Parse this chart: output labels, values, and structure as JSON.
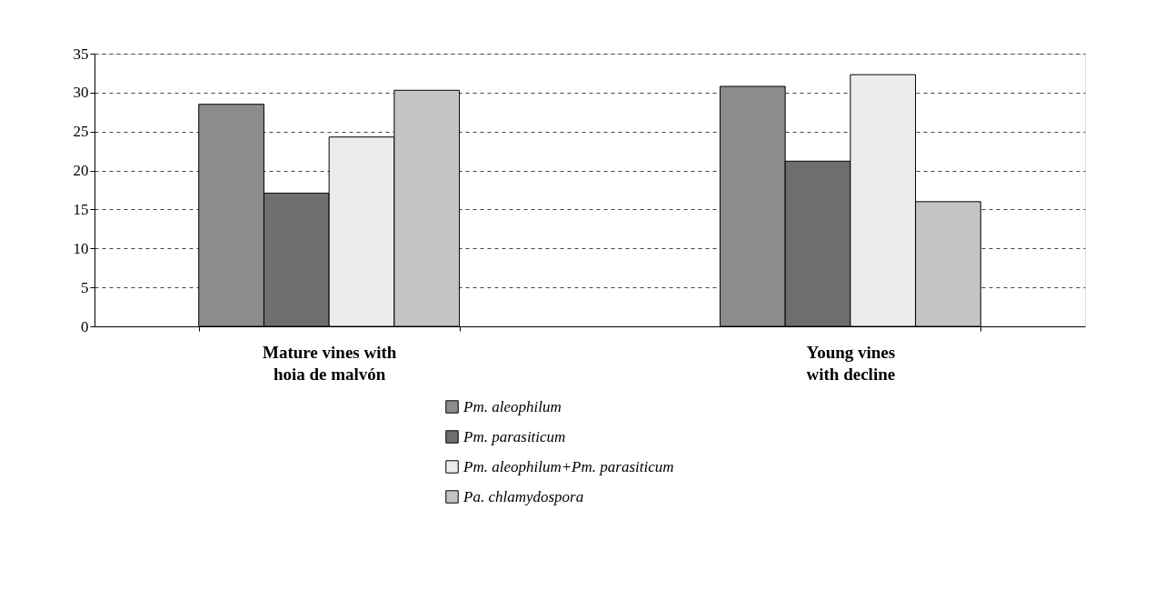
{
  "chart_data": {
    "type": "bar",
    "categories": [
      "Mature vines with\nhoia de malvón",
      "Young vines\nwith decline"
    ],
    "series": [
      {
        "name": "Pm. aleophilum",
        "color": "#8c8c8c",
        "values": [
          28.5,
          30.8
        ]
      },
      {
        "name": "Pm. parasiticum",
        "color": "#6e6e6e",
        "values": [
          17.1,
          21.2
        ]
      },
      {
        "name": "Pm. aleophilum+Pm. parasiticum",
        "color": "#ececec",
        "values": [
          24.3,
          32.3
        ]
      },
      {
        "name": "Pa. chlamydospora",
        "color": "#c4c4c4",
        "values": [
          30.3,
          16.0
        ]
      }
    ],
    "ylim": [
      0,
      35
    ],
    "yticks": [
      0,
      5,
      10,
      15,
      20,
      25,
      30,
      35
    ],
    "grid": "y",
    "legend": "bottom"
  }
}
